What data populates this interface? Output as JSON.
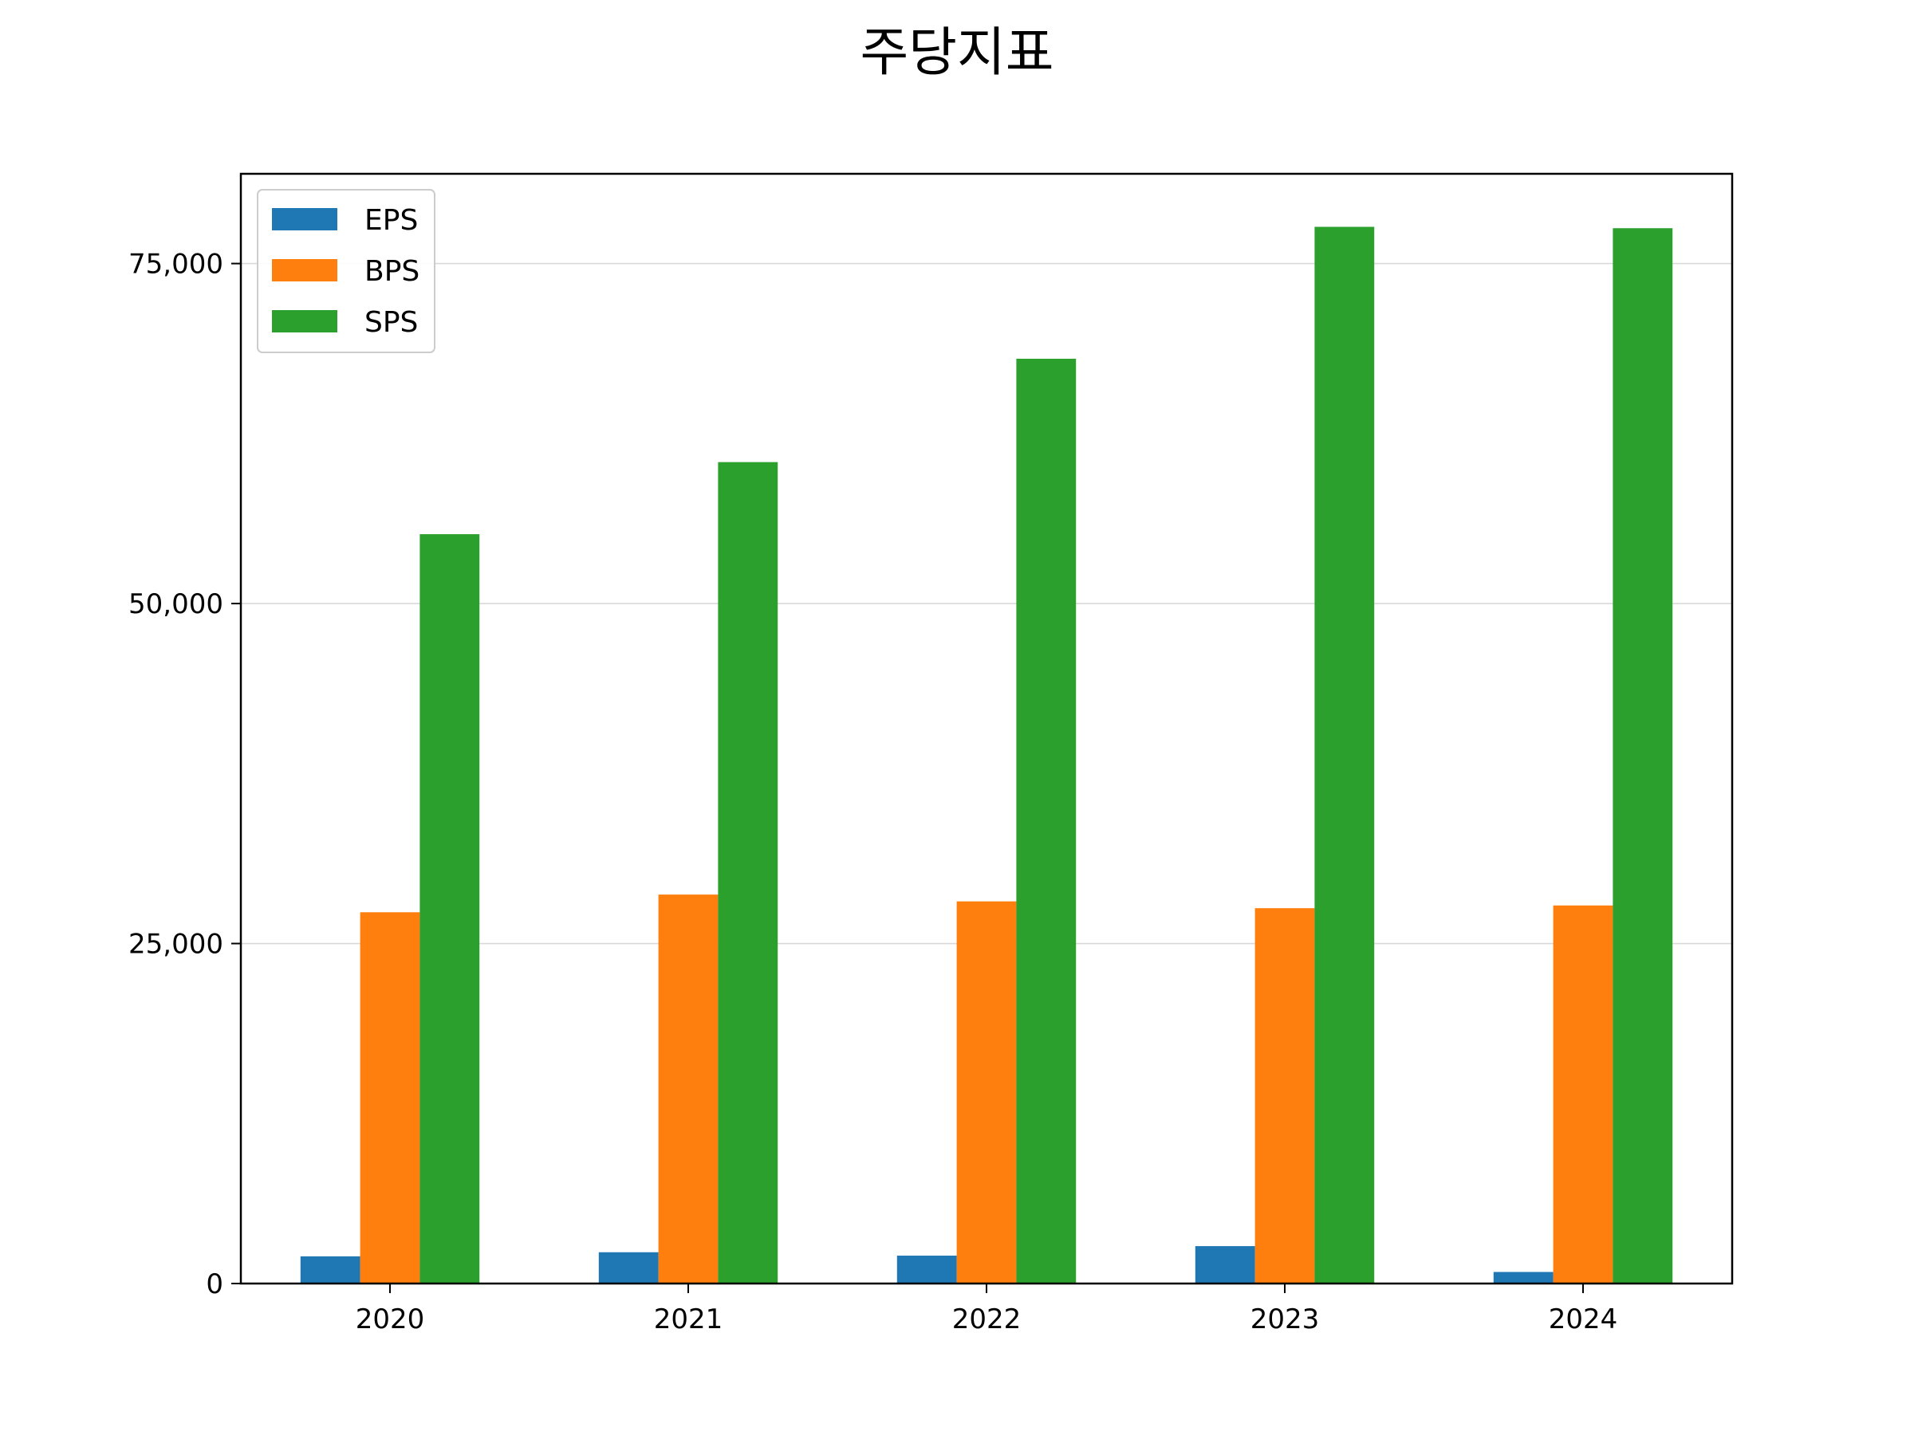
{
  "chart_data": {
    "type": "bar",
    "title": "주당지표",
    "xlabel": "",
    "ylabel": "",
    "categories": [
      "2020",
      "2021",
      "2022",
      "2023",
      "2024"
    ],
    "series": [
      {
        "name": "EPS",
        "color": "#1f77b4",
        "values": [
          2000,
          2300,
          2050,
          2750,
          850
        ]
      },
      {
        "name": "BPS",
        "color": "#ff7f0e",
        "values": [
          27300,
          28600,
          28100,
          27600,
          27800
        ]
      },
      {
        "name": "SPS",
        "color": "#2ca02c",
        "values": [
          55100,
          60400,
          68000,
          77700,
          77600
        ]
      }
    ],
    "ylim": [
      0,
      81600
    ],
    "yticks": [
      0,
      25000,
      50000,
      75000
    ],
    "ytick_labels": [
      "0",
      "25,000",
      "50,000",
      "75,000"
    ],
    "grid": "y",
    "legend_position": "upper-left"
  }
}
